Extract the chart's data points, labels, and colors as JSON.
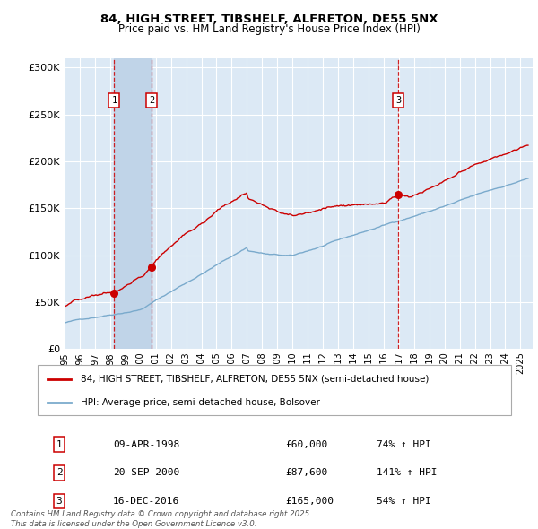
{
  "title1": "84, HIGH STREET, TIBSHELF, ALFRETON, DE55 5NX",
  "title2": "Price paid vs. HM Land Registry's House Price Index (HPI)",
  "property_label": "84, HIGH STREET, TIBSHELF, ALFRETON, DE55 5NX (semi-detached house)",
  "hpi_label": "HPI: Average price, semi-detached house, Bolsover",
  "sale_points": [
    {
      "date": 1998.27,
      "price": 60000,
      "label": "1",
      "date_str": "09-APR-1998",
      "price_str": "£60,000",
      "hpi_str": "74% ↑ HPI"
    },
    {
      "date": 2000.72,
      "price": 87600,
      "label": "2",
      "date_str": "20-SEP-2000",
      "price_str": "£87,600",
      "hpi_str": "141% ↑ HPI"
    },
    {
      "date": 2016.96,
      "price": 165000,
      "label": "3",
      "date_str": "16-DEC-2016",
      "price_str": "£165,000",
      "hpi_str": "54% ↑ HPI"
    }
  ],
  "red_color": "#cc0000",
  "blue_color": "#7aaacc",
  "bg_color": "#dce9f5",
  "grid_color": "#ffffff",
  "shade_color": "#c0d4e8",
  "ylim": [
    0,
    310000
  ],
  "xlim_start": 1995.0,
  "xlim_end": 2025.8,
  "footnote": "Contains HM Land Registry data © Crown copyright and database right 2025.\nThis data is licensed under the Open Government Licence v3.0."
}
